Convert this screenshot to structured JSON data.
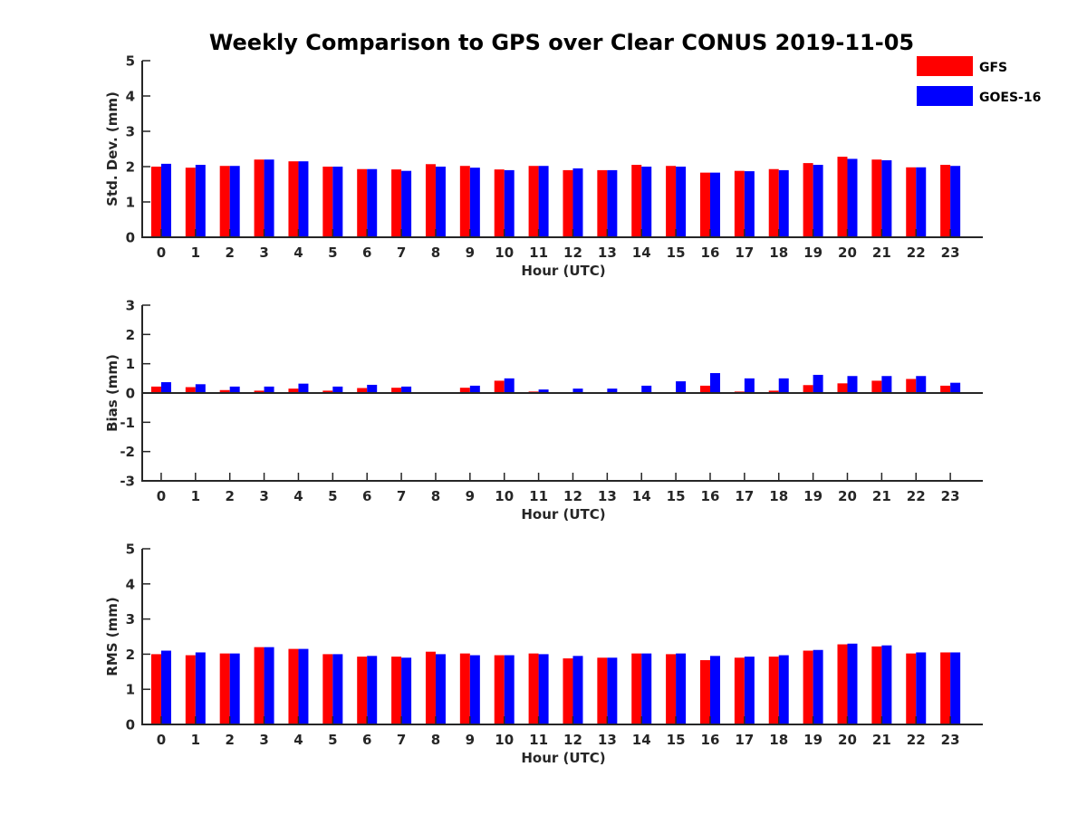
{
  "title": "Weekly Comparison to GPS over Clear CONUS 2019-11-05",
  "legend": {
    "placement": "top-right",
    "items": [
      {
        "label": "GFS",
        "color": "#ff0000"
      },
      {
        "label": "GOES-16",
        "color": "#0000ff"
      }
    ]
  },
  "chart_data": [
    {
      "type": "bar",
      "xlabel": "Hour (UTC)",
      "ylabel": "Std. Dev. (mm)",
      "ylim": [
        0,
        5
      ],
      "yticks": [
        "0",
        "1",
        "2",
        "3",
        "4",
        "5"
      ],
      "categories": [
        "0",
        "1",
        "2",
        "3",
        "4",
        "5",
        "6",
        "7",
        "8",
        "9",
        "10",
        "11",
        "12",
        "13",
        "14",
        "15",
        "16",
        "17",
        "18",
        "19",
        "20",
        "21",
        "22",
        "23"
      ],
      "series": [
        {
          "name": "GFS",
          "color": "#ff0000",
          "values": [
            2.0,
            1.97,
            2.02,
            2.2,
            2.15,
            2.0,
            1.93,
            1.92,
            2.07,
            2.02,
            1.92,
            2.02,
            1.9,
            1.9,
            2.05,
            2.02,
            1.83,
            1.88,
            1.93,
            2.1,
            2.28,
            2.2,
            1.98,
            2.05
          ]
        },
        {
          "name": "GOES-16",
          "color": "#0000ff",
          "values": [
            2.08,
            2.05,
            2.02,
            2.2,
            2.15,
            2.0,
            1.93,
            1.88,
            2.0,
            1.97,
            1.9,
            2.02,
            1.95,
            1.9,
            2.0,
            2.0,
            1.83,
            1.87,
            1.9,
            2.05,
            2.22,
            2.18,
            1.98,
            2.02
          ]
        }
      ]
    },
    {
      "type": "bar",
      "xlabel": "Hour (UTC)",
      "ylabel": "Bias (mm)",
      "ylim": [
        -3,
        3
      ],
      "yticks": [
        "-3",
        "-2",
        "-1",
        "0",
        "1",
        "2",
        "3"
      ],
      "categories": [
        "0",
        "1",
        "2",
        "3",
        "4",
        "5",
        "6",
        "7",
        "8",
        "9",
        "10",
        "11",
        "12",
        "13",
        "14",
        "15",
        "16",
        "17",
        "18",
        "19",
        "20",
        "21",
        "22",
        "23"
      ],
      "series": [
        {
          "name": "GFS",
          "color": "#ff0000",
          "values": [
            0.22,
            0.2,
            0.1,
            0.08,
            0.15,
            0.08,
            0.17,
            0.18,
            -0.03,
            0.18,
            0.42,
            0.05,
            0.0,
            0.0,
            -0.03,
            0.0,
            0.25,
            0.05,
            0.08,
            0.27,
            0.33,
            0.42,
            0.48,
            0.25
          ]
        },
        {
          "name": "GOES-16",
          "color": "#0000ff",
          "values": [
            0.37,
            0.3,
            0.22,
            0.22,
            0.32,
            0.22,
            0.28,
            0.22,
            0.0,
            0.25,
            0.5,
            0.12,
            0.15,
            0.15,
            0.25,
            0.4,
            0.68,
            0.5,
            0.5,
            0.62,
            0.58,
            0.58,
            0.58,
            0.35
          ]
        }
      ]
    },
    {
      "type": "bar",
      "xlabel": "Hour (UTC)",
      "ylabel": "RMS (mm)",
      "ylim": [
        0,
        5
      ],
      "yticks": [
        "0",
        "1",
        "2",
        "3",
        "4",
        "5"
      ],
      "categories": [
        "0",
        "1",
        "2",
        "3",
        "4",
        "5",
        "6",
        "7",
        "8",
        "9",
        "10",
        "11",
        "12",
        "13",
        "14",
        "15",
        "16",
        "17",
        "18",
        "19",
        "20",
        "21",
        "22",
        "23"
      ],
      "series": [
        {
          "name": "GFS",
          "color": "#ff0000",
          "values": [
            2.0,
            1.97,
            2.02,
            2.2,
            2.15,
            2.0,
            1.93,
            1.93,
            2.07,
            2.02,
            1.97,
            2.02,
            1.88,
            1.9,
            2.02,
            2.0,
            1.83,
            1.9,
            1.93,
            2.1,
            2.28,
            2.22,
            2.02,
            2.05
          ]
        },
        {
          "name": "GOES-16",
          "color": "#0000ff",
          "values": [
            2.1,
            2.05,
            2.02,
            2.2,
            2.15,
            2.0,
            1.95,
            1.9,
            2.0,
            1.97,
            1.97,
            2.0,
            1.95,
            1.9,
            2.02,
            2.02,
            1.95,
            1.93,
            1.97,
            2.12,
            2.3,
            2.25,
            2.05,
            2.05
          ]
        }
      ]
    }
  ]
}
